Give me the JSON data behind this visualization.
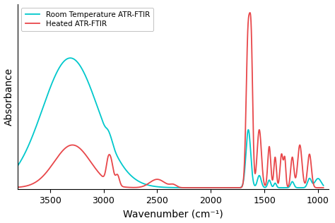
{
  "xlabel": "Wavenumber (cm⁻¹)",
  "ylabel": "Absorbance",
  "xlim": [
    3800,
    900
  ],
  "legend_heated": "Heated ATR-FTIR",
  "legend_room": "Room Temperature ATR-FTIR",
  "color_heated": "#e8474a",
  "color_room": "#00c8cc",
  "linewidth": 1.3,
  "background_color": "#ffffff",
  "tick_label_size": 9,
  "axis_label_size": 10,
  "legend_loc": "upper left"
}
